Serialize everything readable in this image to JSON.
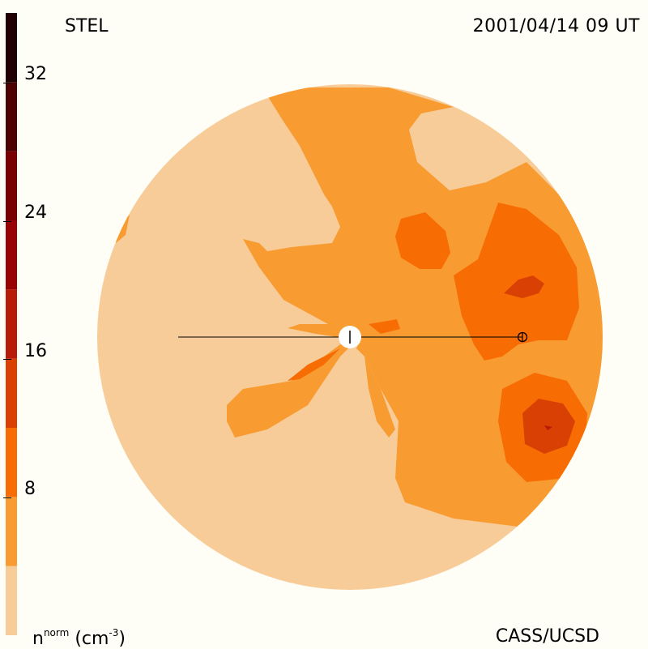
{
  "header": {
    "title": "STEL",
    "timestamp": "2001/04/14 09 UT"
  },
  "footer": {
    "credit": "CASS/UCSD",
    "units_main": "n",
    "units_sup": "norm",
    "units_paren": "(cm",
    "units_exp": "-3",
    "units_close": ")"
  },
  "colorbar": {
    "ticks": [
      "32",
      "24",
      "16",
      "8"
    ],
    "tick_values": [
      32,
      24,
      16,
      8
    ],
    "range": [
      0,
      36
    ],
    "levels": [
      {
        "from": 0,
        "to": 4,
        "color": "#f8cc98"
      },
      {
        "from": 4,
        "to": 8,
        "color": "#f89c32"
      },
      {
        "from": 8,
        "to": 12,
        "color": "#f86c04"
      },
      {
        "from": 12,
        "to": 16,
        "color": "#d84004"
      },
      {
        "from": 16,
        "to": 20,
        "color": "#b81c08"
      },
      {
        "from": 20,
        "to": 24,
        "color": "#980404"
      },
      {
        "from": 24,
        "to": 28,
        "color": "#780000"
      },
      {
        "from": 28,
        "to": 32,
        "color": "#4c0000"
      },
      {
        "from": 32,
        "to": 36,
        "color": "#200000"
      }
    ]
  },
  "colors": {
    "background": "#fefef6",
    "level1": "#f8cc98",
    "level2": "#f89c32",
    "level3": "#f86c04",
    "level4": "#d84004",
    "level5": "#b81c08"
  }
}
